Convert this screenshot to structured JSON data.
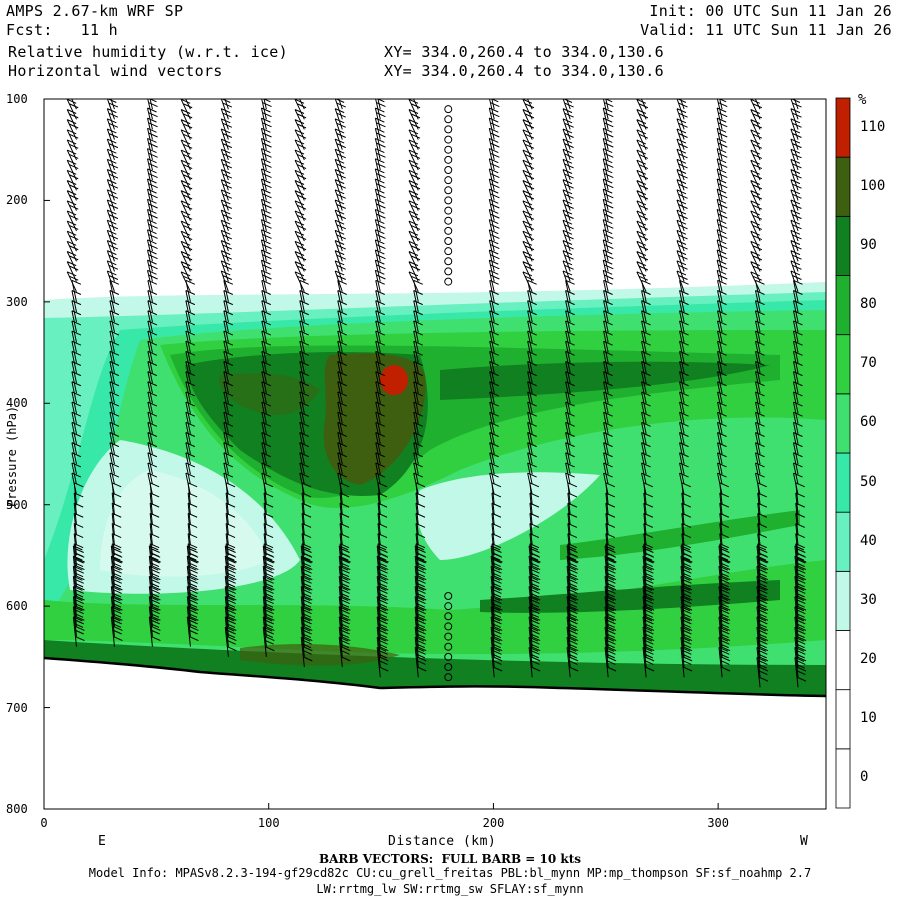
{
  "header": {
    "model": "AMPS 2.67-km WRF SP",
    "fcst": "Fcst:   11 h",
    "field1": "Relative humidity (w.r.t. ice)",
    "field2": "Horizontal wind vectors",
    "init": "Init: 00 UTC Sun 11 Jan 26",
    "valid": "Valid: 11 UTC Sun 11 Jan 26",
    "xy1": "XY= 334.0,260.4 to 334.0,130.6",
    "xy2": "XY= 334.0,260.4 to 334.0,130.6"
  },
  "footer": {
    "barb": "BARB VECTORS:  FULL BARB = 10 kts",
    "model_info": "Model Info: MPASv8.2.3-194-gf29cd82c CU:cu_grell_freitas PBL:bl_mynn MP:mp_thompson SF:sf_noahmp 2.7",
    "model_info2": "LW:rrtmg_lw SW:rrtmg_sw SFLAY:sf_mynn"
  },
  "chart_data": {
    "type": "heatmap",
    "title": "Relative humidity (w.r.t. ice)",
    "xlabel": "Distance (km)",
    "ylabel": "Pressure (hPa)",
    "xlim": [
      0,
      348
    ],
    "ylim": [
      800,
      100
    ],
    "x_ticks": [
      "0",
      "100",
      "200",
      "300"
    ],
    "y_ticks": [
      "100",
      "200",
      "300",
      "400",
      "500",
      "600",
      "700",
      "800"
    ],
    "x_end_labels": {
      "left": "E",
      "right": "W"
    },
    "colorbar": {
      "unit": "%",
      "levels": [
        0,
        10,
        20,
        30,
        40,
        50,
        60,
        70,
        80,
        90,
        100,
        110
      ],
      "colors": [
        "#ffffff",
        "#ffffff",
        "#ffffff",
        "#c2f8e8",
        "#68f0c0",
        "#38e8a8",
        "#40e070",
        "#30d040",
        "#20b030",
        "#108020",
        "#3f5f10",
        "#c02000"
      ],
      "labels": [
        "0",
        "10",
        "20",
        "30",
        "40",
        "50",
        "60",
        "70",
        "80",
        "90",
        "100",
        "110"
      ]
    },
    "terrain_pressure_hPa": [
      [
        0,
        650
      ],
      [
        50,
        656
      ],
      [
        100,
        668
      ],
      [
        150,
        682
      ],
      [
        170,
        685
      ],
      [
        200,
        683
      ],
      [
        250,
        684
      ],
      [
        300,
        688
      ],
      [
        348,
        690
      ]
    ],
    "rh_features": [
      {
        "desc": "dry layer above",
        "pressure_top": 100,
        "pressure_bottom": 300,
        "rh": 0
      },
      {
        "desc": "moist layer core",
        "x_center": 150,
        "p_center": 380,
        "rh_max": 115
      }
    ],
    "wind_barbs": "columns of barbs at approx. 17 km spacing, light winds aloft, stronger near surface"
  }
}
